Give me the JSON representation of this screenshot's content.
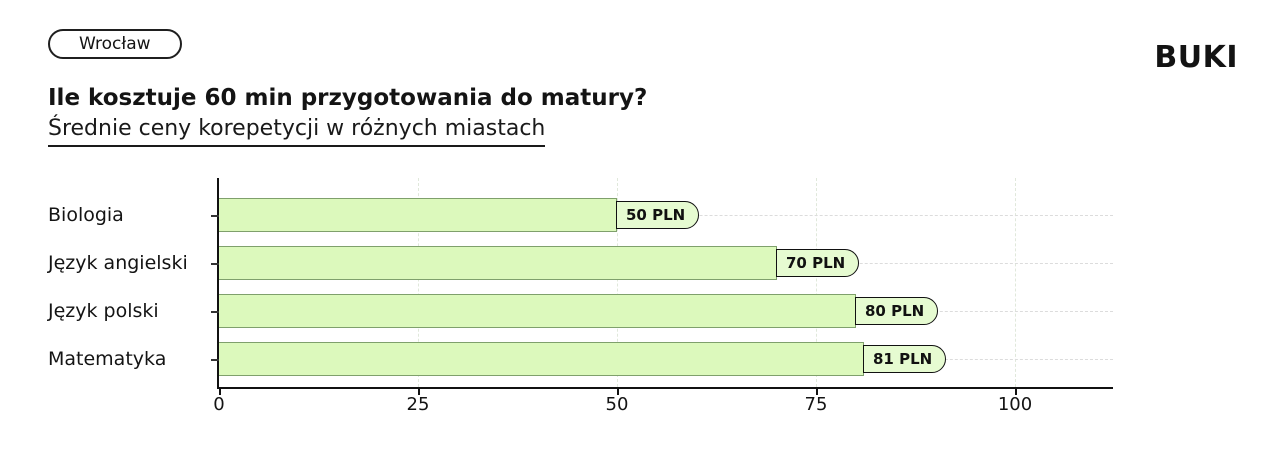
{
  "header": {
    "city": "Wrocław",
    "logo": "BUKI",
    "title": "Ile kosztuje 60 min przygotowania do matury?",
    "subtitle": "Średnie ceny korepetycji w różnych miastach"
  },
  "chart_data": {
    "type": "bar",
    "orientation": "horizontal",
    "title": "Ile kosztuje 60 min przygotowania do matury?",
    "subtitle": "Średnie ceny korepetycji w różnych miastach",
    "categories": [
      "Biologia",
      "Język angielski",
      "Język polski",
      "Matematyka"
    ],
    "values": [
      50,
      70,
      80,
      81
    ],
    "value_labels": [
      "50 PLN",
      "70 PLN",
      "80 PLN",
      "81 PLN"
    ],
    "unit": "PLN",
    "xticks": [
      0,
      25,
      50,
      75,
      100
    ],
    "xlim": [
      0,
      112.5
    ],
    "grid": true,
    "legend": "none",
    "colors": {
      "bar_fill": "#dcf9bc",
      "bar_border": "#7fa06c",
      "pill_fill": "#e6fbd1",
      "pill_border": "#111111",
      "grid_horizontal": "#dcdcdc",
      "grid_vertical": "#e0e8db",
      "axis": "#111111",
      "text": "#141414"
    }
  }
}
